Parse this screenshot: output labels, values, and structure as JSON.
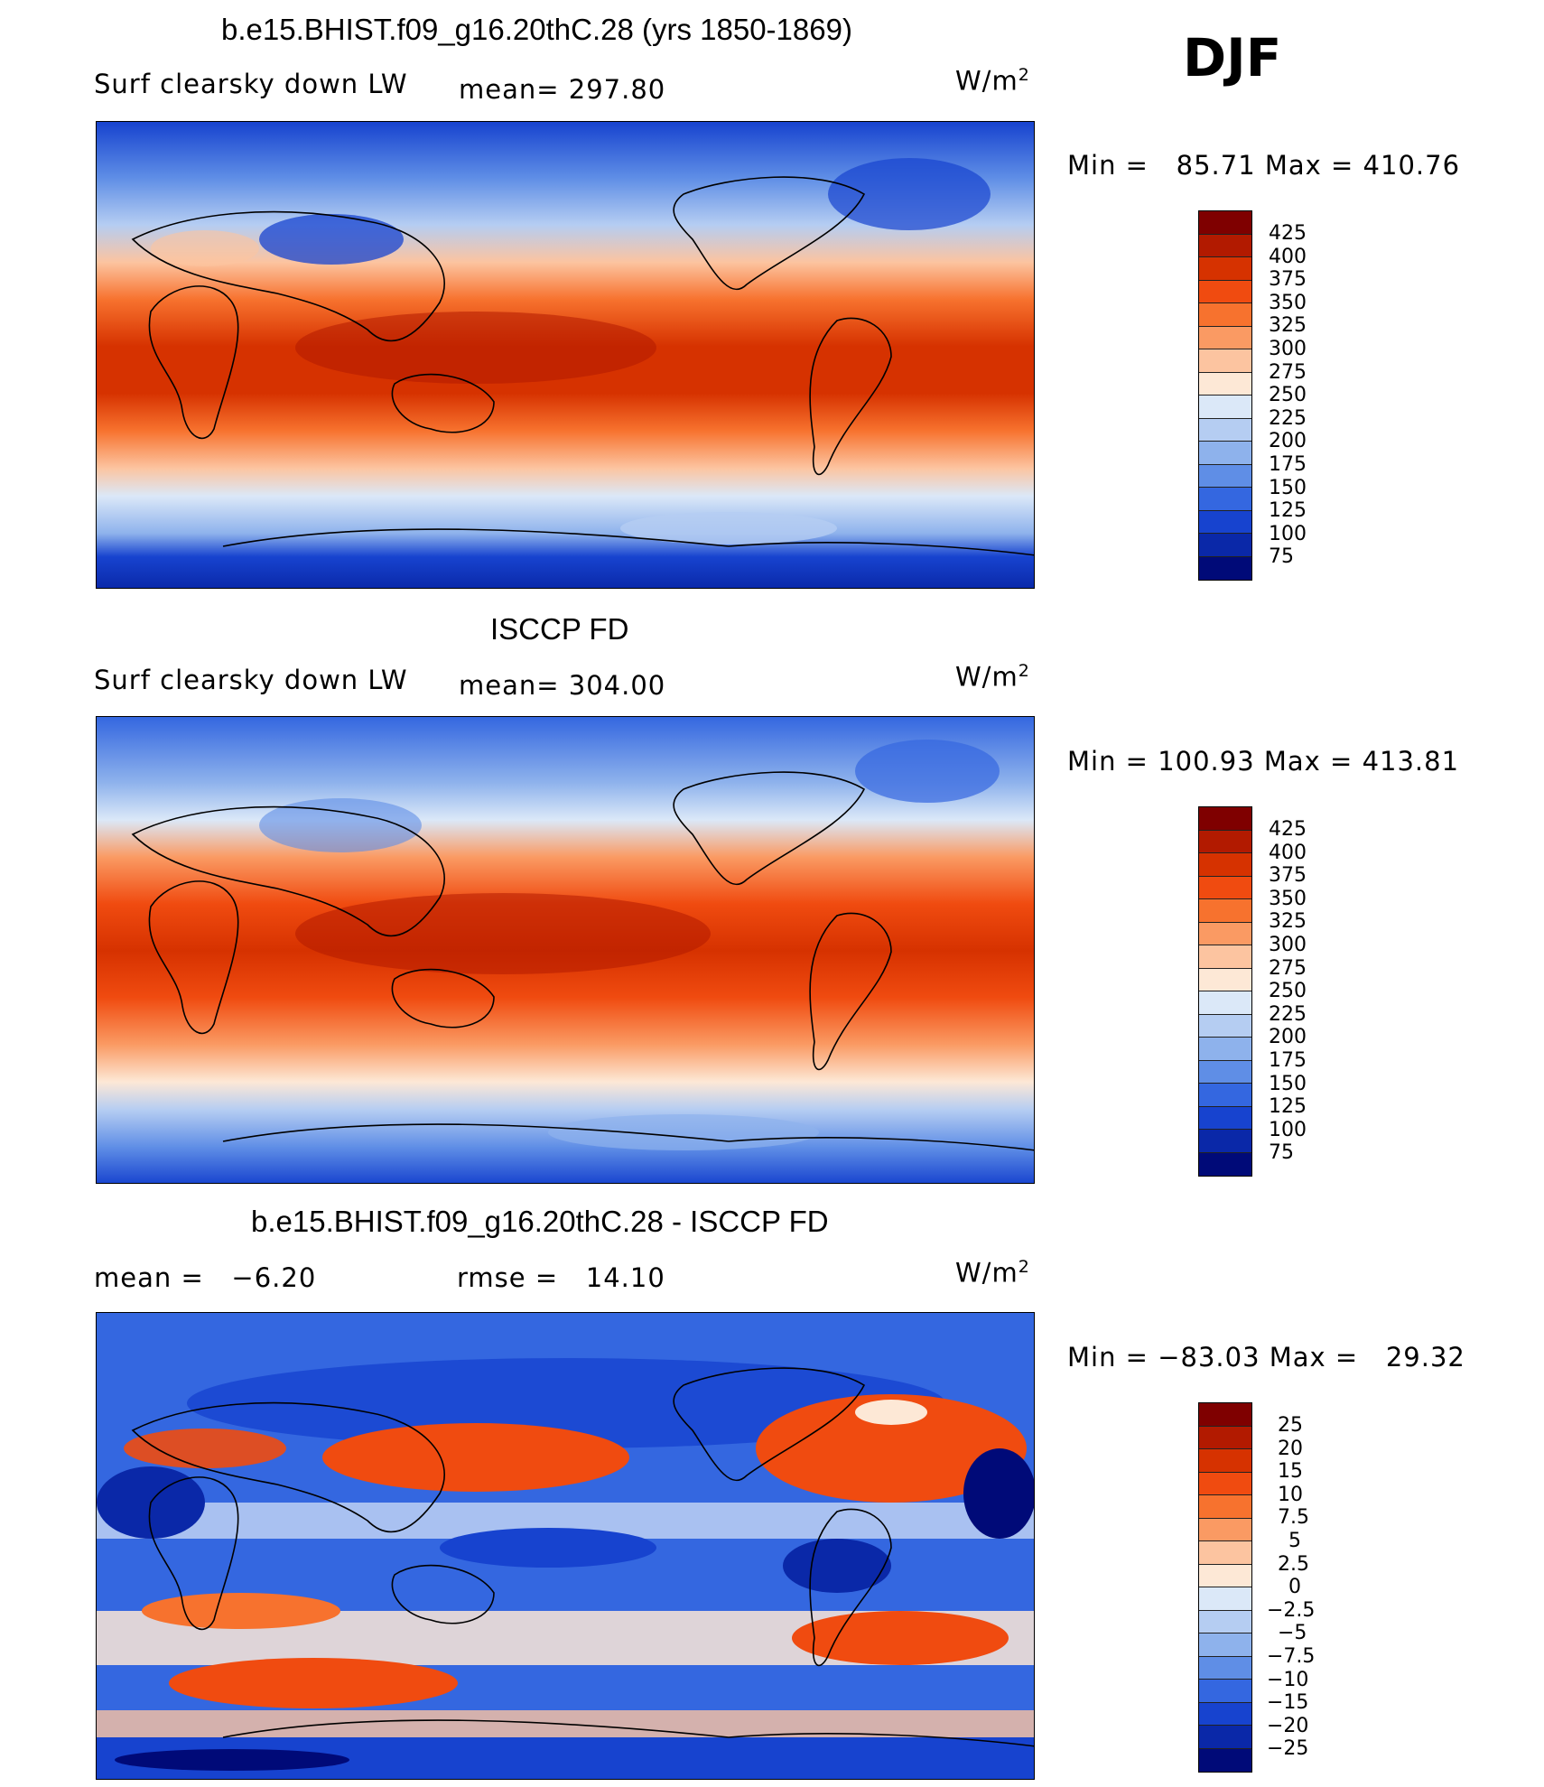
{
  "season": "DJF",
  "units": "W/m",
  "units_sup": "2",
  "panels": [
    {
      "title": "b.e15.BHIST.f09_g16.20thC.28 (yrs 1850-1869)",
      "variable": "Surf clearsky down LW",
      "stat1": "mean= 297.80",
      "stat2": "",
      "minmax": "Min =   85.71 Max = 410.76",
      "levels": [
        "425",
        "400",
        "375",
        "350",
        "325",
        "300",
        "275",
        "250",
        "225",
        "200",
        "175",
        "150",
        "125",
        "100",
        "75"
      ]
    },
    {
      "title": "ISCCP FD",
      "variable": "Surf clearsky down LW",
      "stat1": "mean= 304.00",
      "stat2": "",
      "minmax": "Min = 100.93 Max = 413.81",
      "levels": [
        "425",
        "400",
        "375",
        "350",
        "325",
        "300",
        "275",
        "250",
        "225",
        "200",
        "175",
        "150",
        "125",
        "100",
        "75"
      ]
    },
    {
      "title": "b.e15.BHIST.f09_g16.20thC.28 - ISCCP FD",
      "variable": "mean =   −6.20",
      "stat1": "rmse =   14.10",
      "stat2": "",
      "minmax": "Min = −83.03 Max =   29.32",
      "levels": [
        "25",
        "20",
        "15",
        "10",
        "7.5",
        "5",
        "2.5",
        "0",
        "−2.5",
        "−5",
        "−7.5",
        "−10",
        "−15",
        "−20",
        "−25"
      ]
    }
  ],
  "colorbar_colors": [
    "#7f0000",
    "#b21a00",
    "#d63200",
    "#f04b10",
    "#f7722e",
    "#fa9a63",
    "#fcc4a0",
    "#fde8d6",
    "#dbe8f8",
    "#b5cdf2",
    "#8eb2ec",
    "#5f8ee6",
    "#3467e0",
    "#1743cf",
    "#0a28a8",
    "#000a78"
  ]
}
